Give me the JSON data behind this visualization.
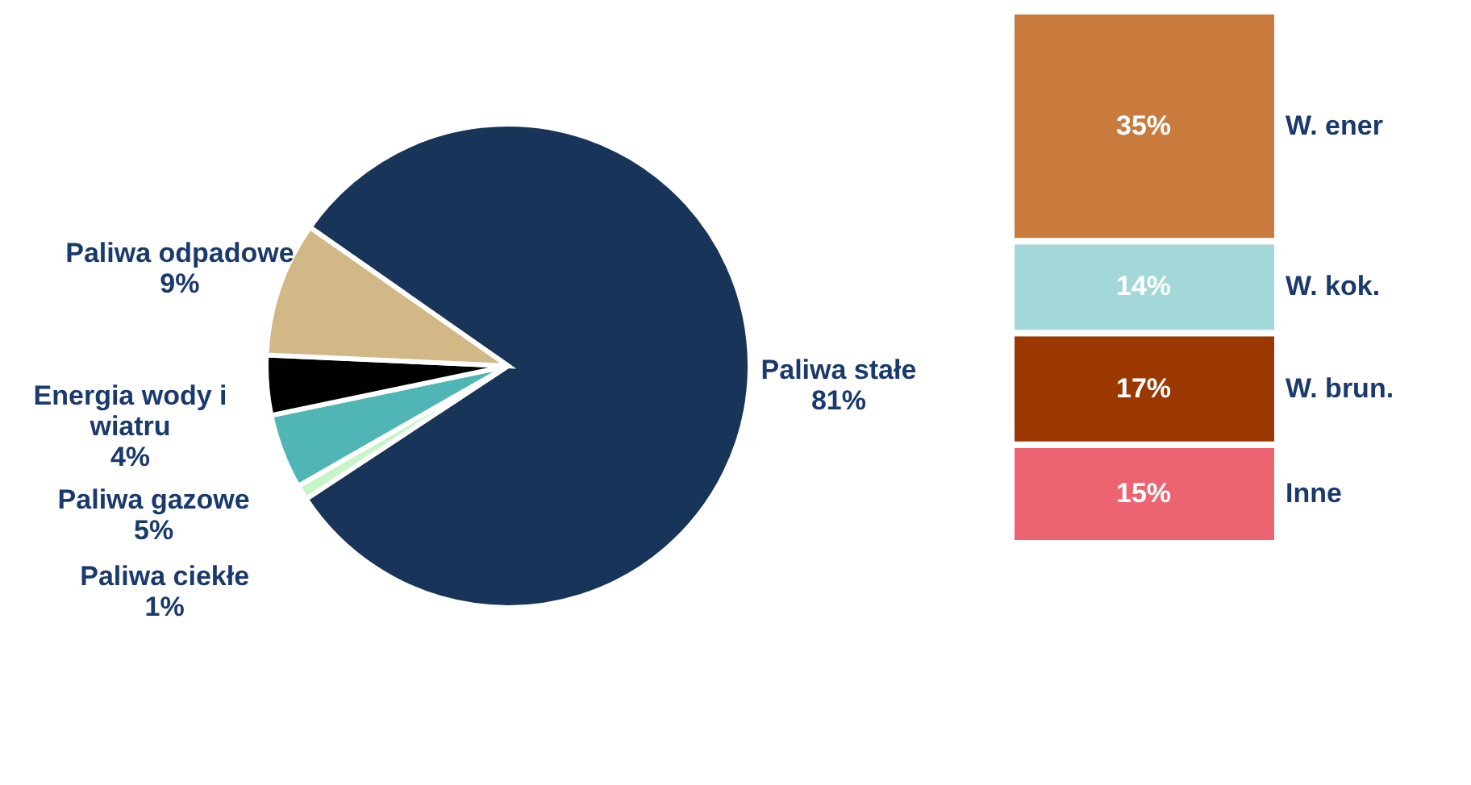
{
  "chart_data": [
    {
      "type": "pie",
      "categories": [
        "Paliwa stałe",
        "Paliwa ciekłe",
        "Paliwa gazowe",
        "Energia wody i wiatru",
        "Paliwa odpadowe"
      ],
      "values": [
        81,
        1,
        5,
        4,
        9
      ],
      "value_labels": [
        "81%",
        "1%",
        "5%",
        "4%",
        "9%"
      ],
      "colors": [
        "#183459",
        "#c8f5c8",
        "#4fb5b5",
        "#000000",
        "#d3b887"
      ],
      "legend": false
    },
    {
      "type": "bar",
      "stacked": true,
      "categories": [
        null
      ],
      "legend": false,
      "series": [
        {
          "name": "Inne",
          "color": "#ec6472",
          "values": [
            15
          ],
          "value_labels": [
            "15%"
          ]
        },
        {
          "name": "W. brun.",
          "color": "#9a3800",
          "values": [
            17
          ],
          "value_labels": [
            "17%"
          ]
        },
        {
          "name": "W. kok.",
          "color": "#a3d8d8",
          "values": [
            14
          ],
          "value_labels": [
            "14%"
          ]
        },
        {
          "name": "W. ener",
          "color": "#c87b3c",
          "values": [
            35
          ],
          "value_labels": [
            "35%"
          ]
        }
      ]
    }
  ]
}
